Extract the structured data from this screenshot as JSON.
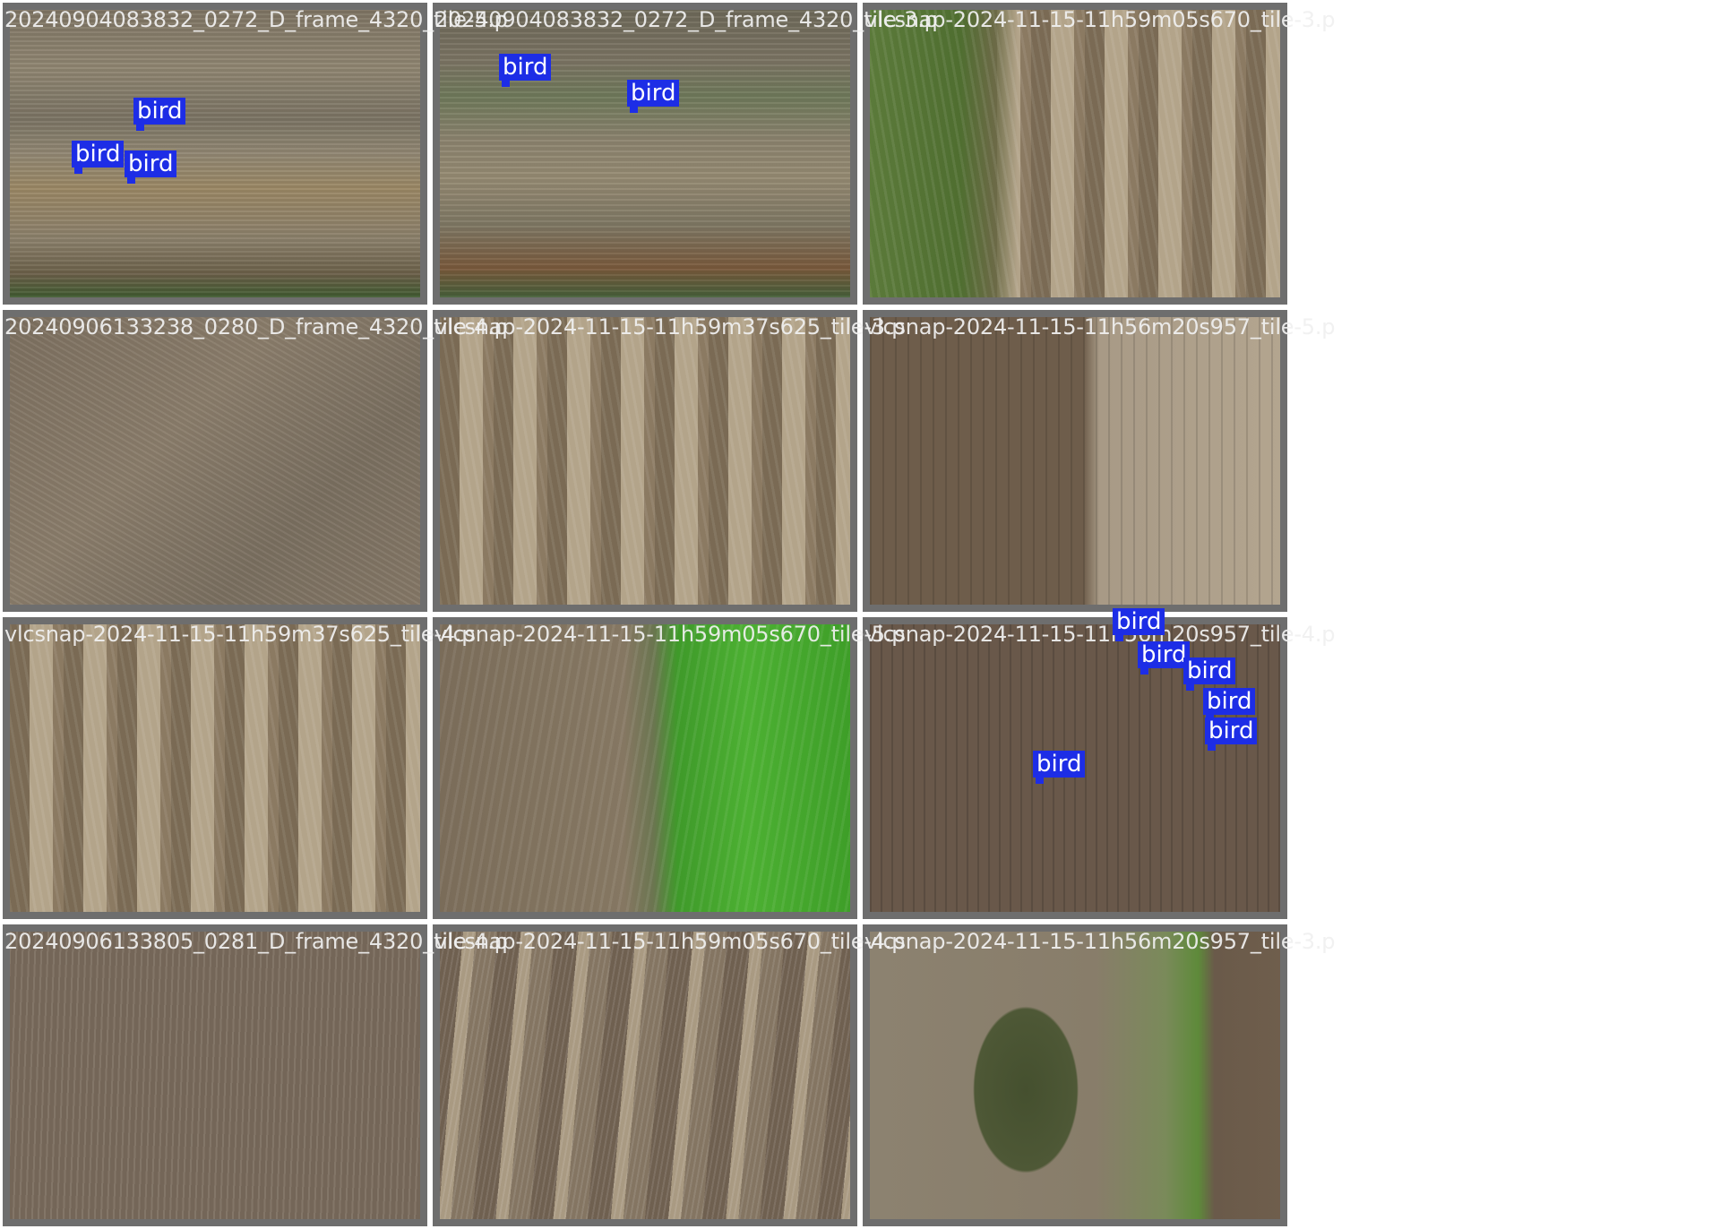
{
  "mosaic": {
    "tiles": [
      {
        "filename": "20240904083832_0272_D_frame_4320_tile-5.p",
        "texture": "stubble",
        "detections": [
          "bird",
          "bird",
          "bird"
        ]
      },
      {
        "filename": "20240904083832_0272_D_frame_4320_tile-3.p",
        "texture": "stubble-b",
        "detections": [
          "bird",
          "bird"
        ]
      },
      {
        "filename": "vlcsnap-2024-11-15-11h59m05s670_tile-3.p",
        "texture": "tracks-green",
        "detections": []
      },
      {
        "filename": "20240906133238_0280_D_frame_4320_tile-4.p",
        "texture": "soil",
        "detections": []
      },
      {
        "filename": "vlcsnap-2024-11-15-11h59m37s625_tile-3.p",
        "texture": "tracks",
        "detections": []
      },
      {
        "filename": "vlcsnap-2024-11-15-11h56m20s957_tile-5.p",
        "texture": "half",
        "detections": []
      },
      {
        "filename": "vlcsnap-2024-11-15-11h59m37s625_tile-4.p",
        "texture": "tracks",
        "detections": []
      },
      {
        "filename": "vlcsnap-2024-11-15-11h59m05s670_tile-5.p",
        "texture": "green-right",
        "detections": []
      },
      {
        "filename": "vlcsnap-2024-11-15-11h56m20s957_tile-4.p",
        "texture": "dark-rows",
        "detections": [
          "bird",
          "bird",
          "bird",
          "bird",
          "bird",
          "bird"
        ]
      },
      {
        "filename": "20240906133805_0281_D_frame_4320_tile-4.p",
        "texture": "stubble-rows",
        "detections": []
      },
      {
        "filename": "vlcsnap-2024-11-15-11h59m05s670_tile-4.p",
        "texture": "tracks-dense",
        "detections": []
      },
      {
        "filename": "vlcsnap-2024-11-15-11h56m20s957_tile-3.p",
        "texture": "weed-patch",
        "detections": []
      }
    ]
  },
  "colors": {
    "detection_box": "#1d2de6",
    "tile_border": "#6e6e6e",
    "filename_text": "#f0f0f0"
  }
}
